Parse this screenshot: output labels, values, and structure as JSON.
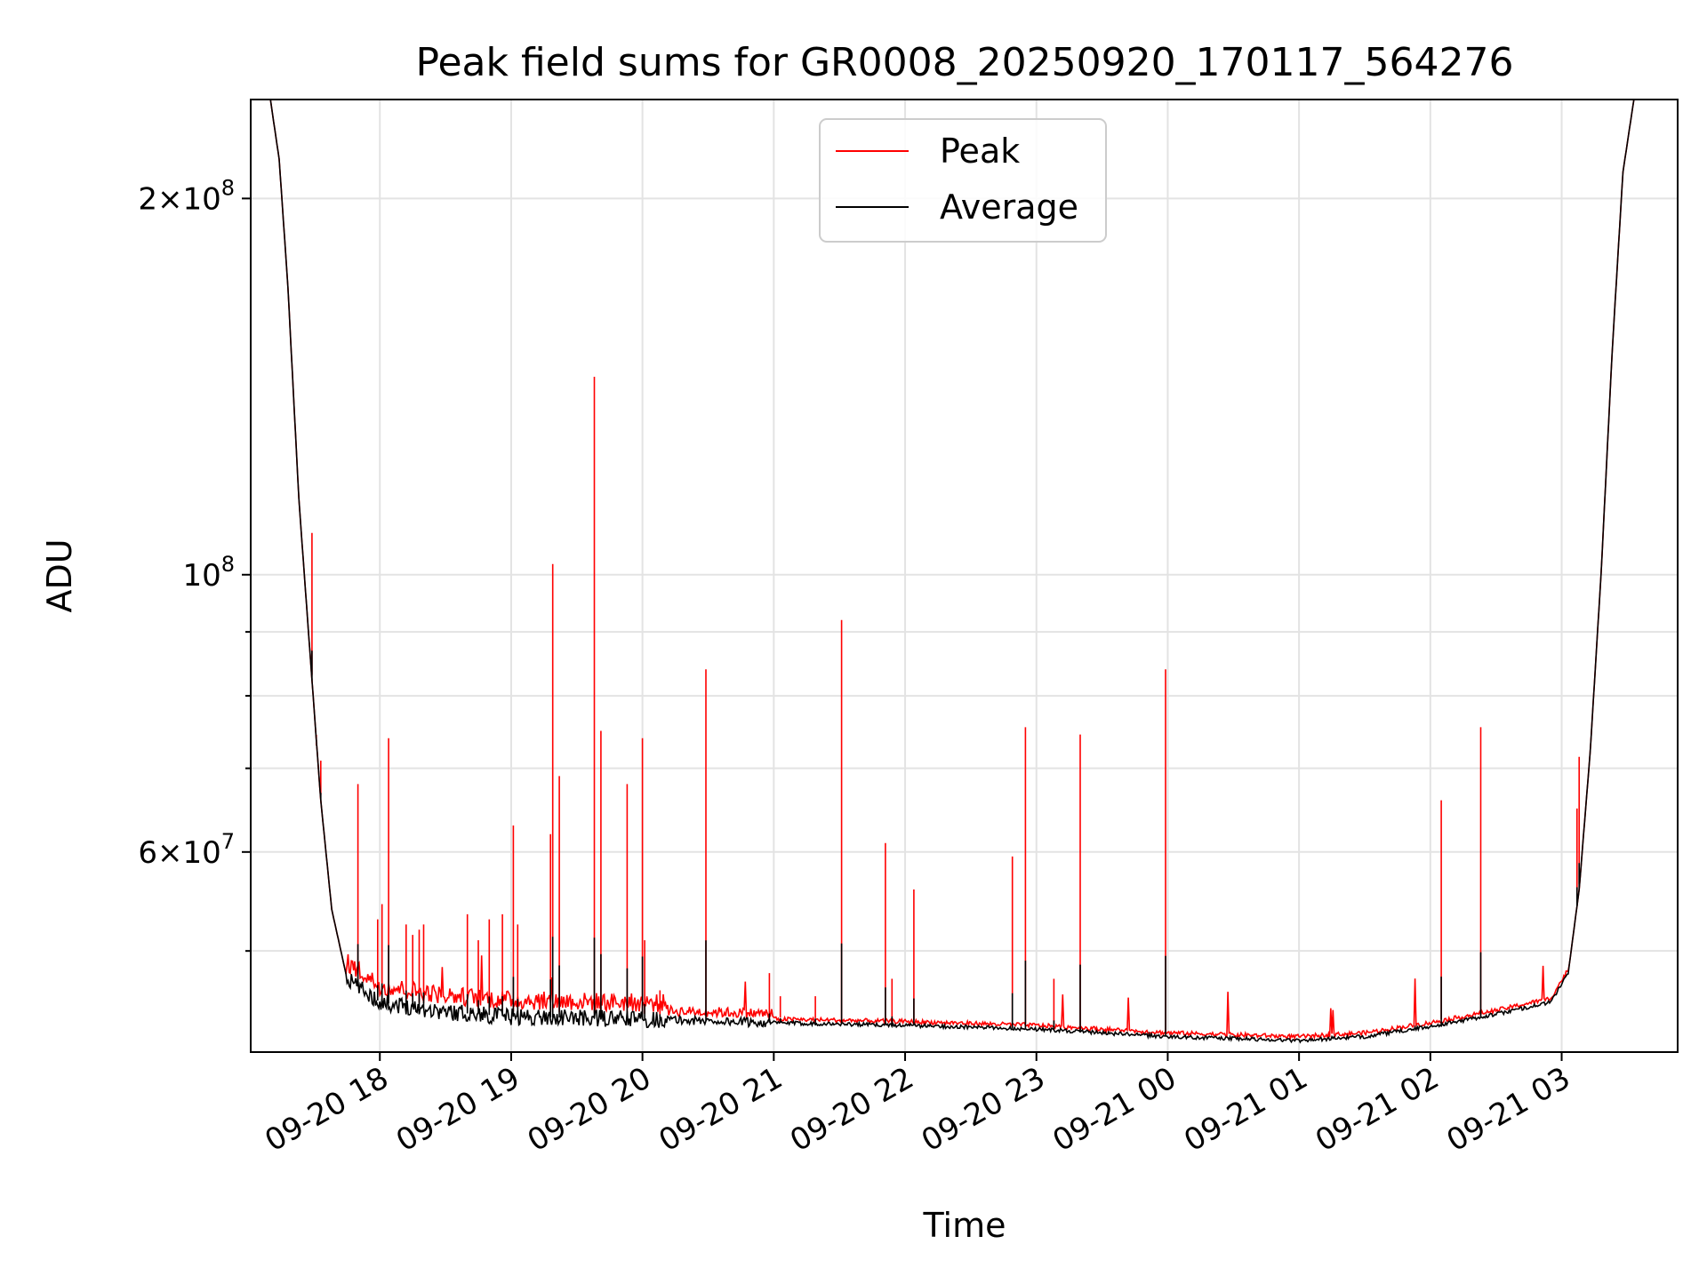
{
  "chart_data": {
    "type": "line",
    "title": "Peak field sums for GR0008_20250920_170117_564276",
    "xlabel": "Time",
    "ylabel": "ADU",
    "y_scale": "log",
    "ylim": [
      41500000,
      240000000
    ],
    "xlim": [
      "2025-09-20 17:01",
      "2025-09-21 03:53"
    ],
    "grid": true,
    "legend_position": "upper-center",
    "x_tick_labels": [
      "09-20 18",
      "09-20 19",
      "09-20 20",
      "09-20 21",
      "09-20 22",
      "09-20 23",
      "09-21 00",
      "09-21 01",
      "09-21 02",
      "09-21 03"
    ],
    "x_ticks": [
      "2025-09-20 18:00",
      "2025-09-20 19:00",
      "2025-09-20 20:00",
      "2025-09-20 21:00",
      "2025-09-20 22:00",
      "2025-09-20 23:00",
      "2025-09-21 00:00",
      "2025-09-21 01:00",
      "2025-09-21 02:00",
      "2025-09-21 03:00"
    ],
    "y_ticks": [
      {
        "value": 60000000,
        "mant": "6",
        "exp": "7"
      },
      {
        "value": 100000000,
        "mant": "",
        "exp": "8"
      },
      {
        "value": 200000000,
        "mant": "2",
        "exp": "8"
      }
    ],
    "y_minor_ticks": [
      50000000,
      70000000,
      80000000,
      90000000
    ],
    "series": [
      {
        "name": "Peak",
        "color": "#ff0000",
        "spikes": [
          [
            "2025-09-20 17:29",
            108000000
          ],
          [
            "2025-09-20 17:31",
            73000000
          ],
          [
            "2025-09-20 17:33",
            71000000
          ],
          [
            "2025-09-20 17:50",
            68000000
          ],
          [
            "2025-09-20 17:59",
            53000000
          ],
          [
            "2025-09-20 18:01",
            54500000
          ],
          [
            "2025-09-20 18:04",
            74000000
          ],
          [
            "2025-09-20 18:12",
            52500000
          ],
          [
            "2025-09-20 18:15",
            51500000
          ],
          [
            "2025-09-20 18:18",
            52000000
          ],
          [
            "2025-09-20 18:20",
            52500000
          ],
          [
            "2025-09-20 18:40",
            53500000
          ],
          [
            "2025-09-20 18:45",
            51000000
          ],
          [
            "2025-09-20 18:50",
            53000000
          ],
          [
            "2025-09-20 18:56",
            53500000
          ],
          [
            "2025-09-20 19:01",
            63000000
          ],
          [
            "2025-09-20 19:03",
            52500000
          ],
          [
            "2025-09-20 19:18",
            62000000
          ],
          [
            "2025-09-20 19:19",
            102000000
          ],
          [
            "2025-09-20 19:22",
            69000000
          ],
          [
            "2025-09-20 19:38",
            144000000
          ],
          [
            "2025-09-20 19:41",
            75000000
          ],
          [
            "2025-09-20 19:53",
            68000000
          ],
          [
            "2025-09-20 20:00",
            74000000
          ],
          [
            "2025-09-20 20:01",
            51000000
          ],
          [
            "2025-09-20 20:08",
            46500000
          ],
          [
            "2025-09-20 20:29",
            84000000
          ],
          [
            "2025-09-20 20:58",
            48000000
          ],
          [
            "2025-09-20 21:03",
            46000000
          ],
          [
            "2025-09-20 21:19",
            46000000
          ],
          [
            "2025-09-20 21:31",
            92000000
          ],
          [
            "2025-09-20 21:51",
            61000000
          ],
          [
            "2025-09-20 21:54",
            47500000
          ],
          [
            "2025-09-20 22:04",
            56000000
          ],
          [
            "2025-09-20 22:49",
            59500000
          ],
          [
            "2025-09-20 22:55",
            75500000
          ],
          [
            "2025-09-20 23:08",
            47500000
          ],
          [
            "2025-09-20 23:20",
            74500000
          ],
          [
            "2025-09-20 23:59",
            84000000
          ],
          [
            "2025-09-21 02:05",
            66000000
          ],
          [
            "2025-09-21 02:23",
            75500000
          ],
          [
            "2025-09-21 03:07",
            65000000
          ],
          [
            "2025-09-21 03:08",
            71500000
          ]
        ]
      },
      {
        "name": "Average",
        "color": "#000000",
        "points": [
          [
            "2025-09-20 17:01",
            240000000
          ],
          [
            "2025-09-20 17:10",
            240000000
          ],
          [
            "2025-09-20 17:14",
            215000000
          ],
          [
            "2025-09-20 17:18",
            170000000
          ],
          [
            "2025-09-20 17:23",
            115000000
          ],
          [
            "2025-09-20 17:28",
            87000000
          ],
          [
            "2025-09-20 17:33",
            66000000
          ],
          [
            "2025-09-20 17:38",
            54000000
          ],
          [
            "2025-09-20 17:45",
            47500000
          ],
          [
            "2025-09-20 18:00",
            45500000
          ],
          [
            "2025-09-20 18:30",
            44700000
          ],
          [
            "2025-09-20 19:00",
            44300000
          ],
          [
            "2025-09-20 20:00",
            44100000
          ],
          [
            "2025-09-20 21:00",
            43800000
          ],
          [
            "2025-09-20 22:00",
            43600000
          ],
          [
            "2025-09-20 23:00",
            43300000
          ],
          [
            "2025-09-21 00:00",
            42700000
          ],
          [
            "2025-09-21 01:00",
            42400000
          ],
          [
            "2025-09-21 01:30",
            42700000
          ],
          [
            "2025-09-21 02:00",
            43500000
          ],
          [
            "2025-09-21 02:30",
            44500000
          ],
          [
            "2025-09-21 02:55",
            45500000
          ],
          [
            "2025-09-21 03:03",
            48000000
          ],
          [
            "2025-09-21 03:08",
            56000000
          ],
          [
            "2025-09-21 03:13",
            72000000
          ],
          [
            "2025-09-21 03:18",
            100000000
          ],
          [
            "2025-09-21 03:23",
            150000000
          ],
          [
            "2025-09-21 03:28",
            210000000
          ],
          [
            "2025-09-21 03:33",
            240000000
          ],
          [
            "2025-09-21 03:53",
            240000000
          ]
        ]
      }
    ]
  }
}
